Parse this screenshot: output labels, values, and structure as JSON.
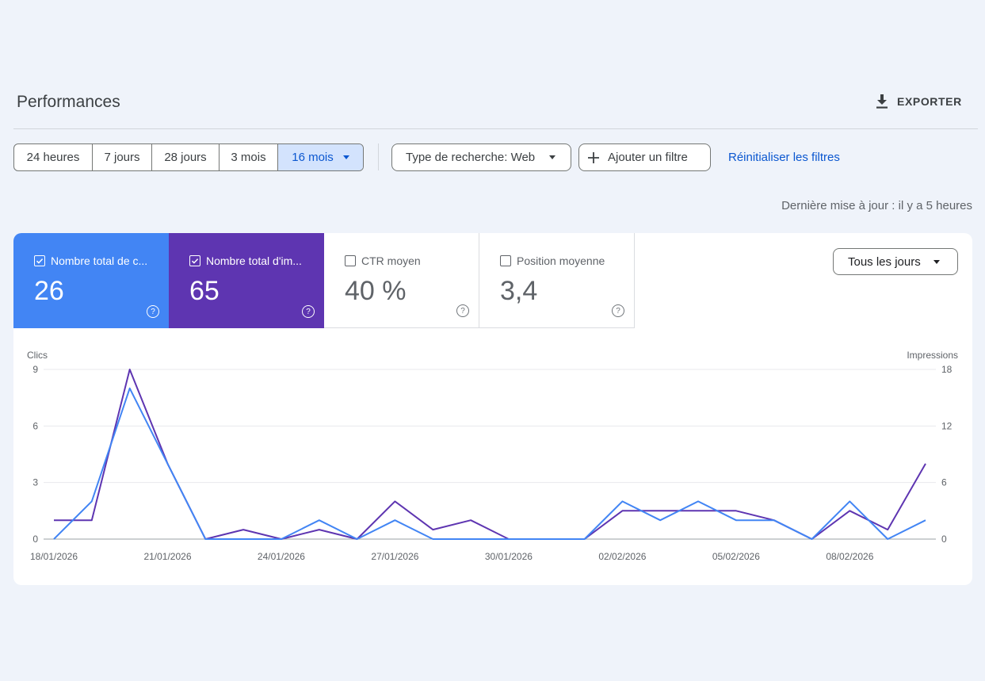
{
  "header": {
    "title": "Performances",
    "export_label": "EXPORTER",
    "export_icon": "download-icon"
  },
  "date_range": {
    "options": [
      "24 heures",
      "7 jours",
      "28 jours",
      "3 mois",
      "16 mois"
    ],
    "selected": "16 mois"
  },
  "filters": {
    "search_type_label": "Type de recherche: Web",
    "add_filter_label": "Ajouter un filtre",
    "reset_label": "Réinitialiser les filtres"
  },
  "last_update": "Dernière mise à jour : il y a 5 heures",
  "metrics": [
    {
      "label": "Nombre total de c...",
      "value": "26",
      "checked": true,
      "color": "#4285f4"
    },
    {
      "label": "Nombre total d'im...",
      "value": "65",
      "checked": true,
      "color": "#5e35b1"
    },
    {
      "label": "CTR moyen",
      "value": "40 %",
      "checked": false
    },
    {
      "label": "Position moyenne",
      "value": "3,4",
      "checked": false
    }
  ],
  "days_dropdown": "Tous les jours",
  "chart_data": {
    "type": "line",
    "left_axis": {
      "title": "Clics",
      "ticks": [
        0,
        3,
        6,
        9
      ],
      "range": [
        0,
        9
      ]
    },
    "right_axis": {
      "title": "Impressions",
      "ticks": [
        0,
        6,
        12,
        18
      ],
      "range": [
        0,
        18
      ]
    },
    "x_labels": [
      "18/01/2026",
      "21/01/2026",
      "24/01/2026",
      "27/01/2026",
      "30/01/2026",
      "02/02/2026",
      "05/02/2026",
      "08/02/2026"
    ],
    "x": [
      "18/01/2026",
      "19/01/2026",
      "20/01/2026",
      "21/01/2026",
      "22/01/2026",
      "23/01/2026",
      "24/01/2026",
      "25/01/2026",
      "26/01/2026",
      "27/01/2026",
      "28/01/2026",
      "29/01/2026",
      "30/01/2026",
      "31/01/2026",
      "01/02/2026",
      "02/02/2026",
      "03/02/2026",
      "04/02/2026",
      "05/02/2026",
      "06/02/2026",
      "07/02/2026",
      "08/02/2026",
      "09/02/2026",
      "10/02/2026"
    ],
    "series": [
      {
        "name": "Clics",
        "axis": "left",
        "color": "#4285f4",
        "values": [
          0,
          2,
          8,
          4,
          0,
          0,
          0,
          1,
          0,
          1,
          0,
          0,
          0,
          0,
          0,
          2,
          1,
          2,
          1,
          1,
          0,
          2,
          0,
          1
        ]
      },
      {
        "name": "Impressions",
        "axis": "right",
        "color": "#5e35b1",
        "values": [
          2,
          2,
          18,
          8,
          0,
          1,
          0,
          1,
          0,
          4,
          1,
          2,
          0,
          0,
          0,
          3,
          3,
          3,
          3,
          2,
          0,
          3,
          1,
          8
        ]
      }
    ]
  }
}
